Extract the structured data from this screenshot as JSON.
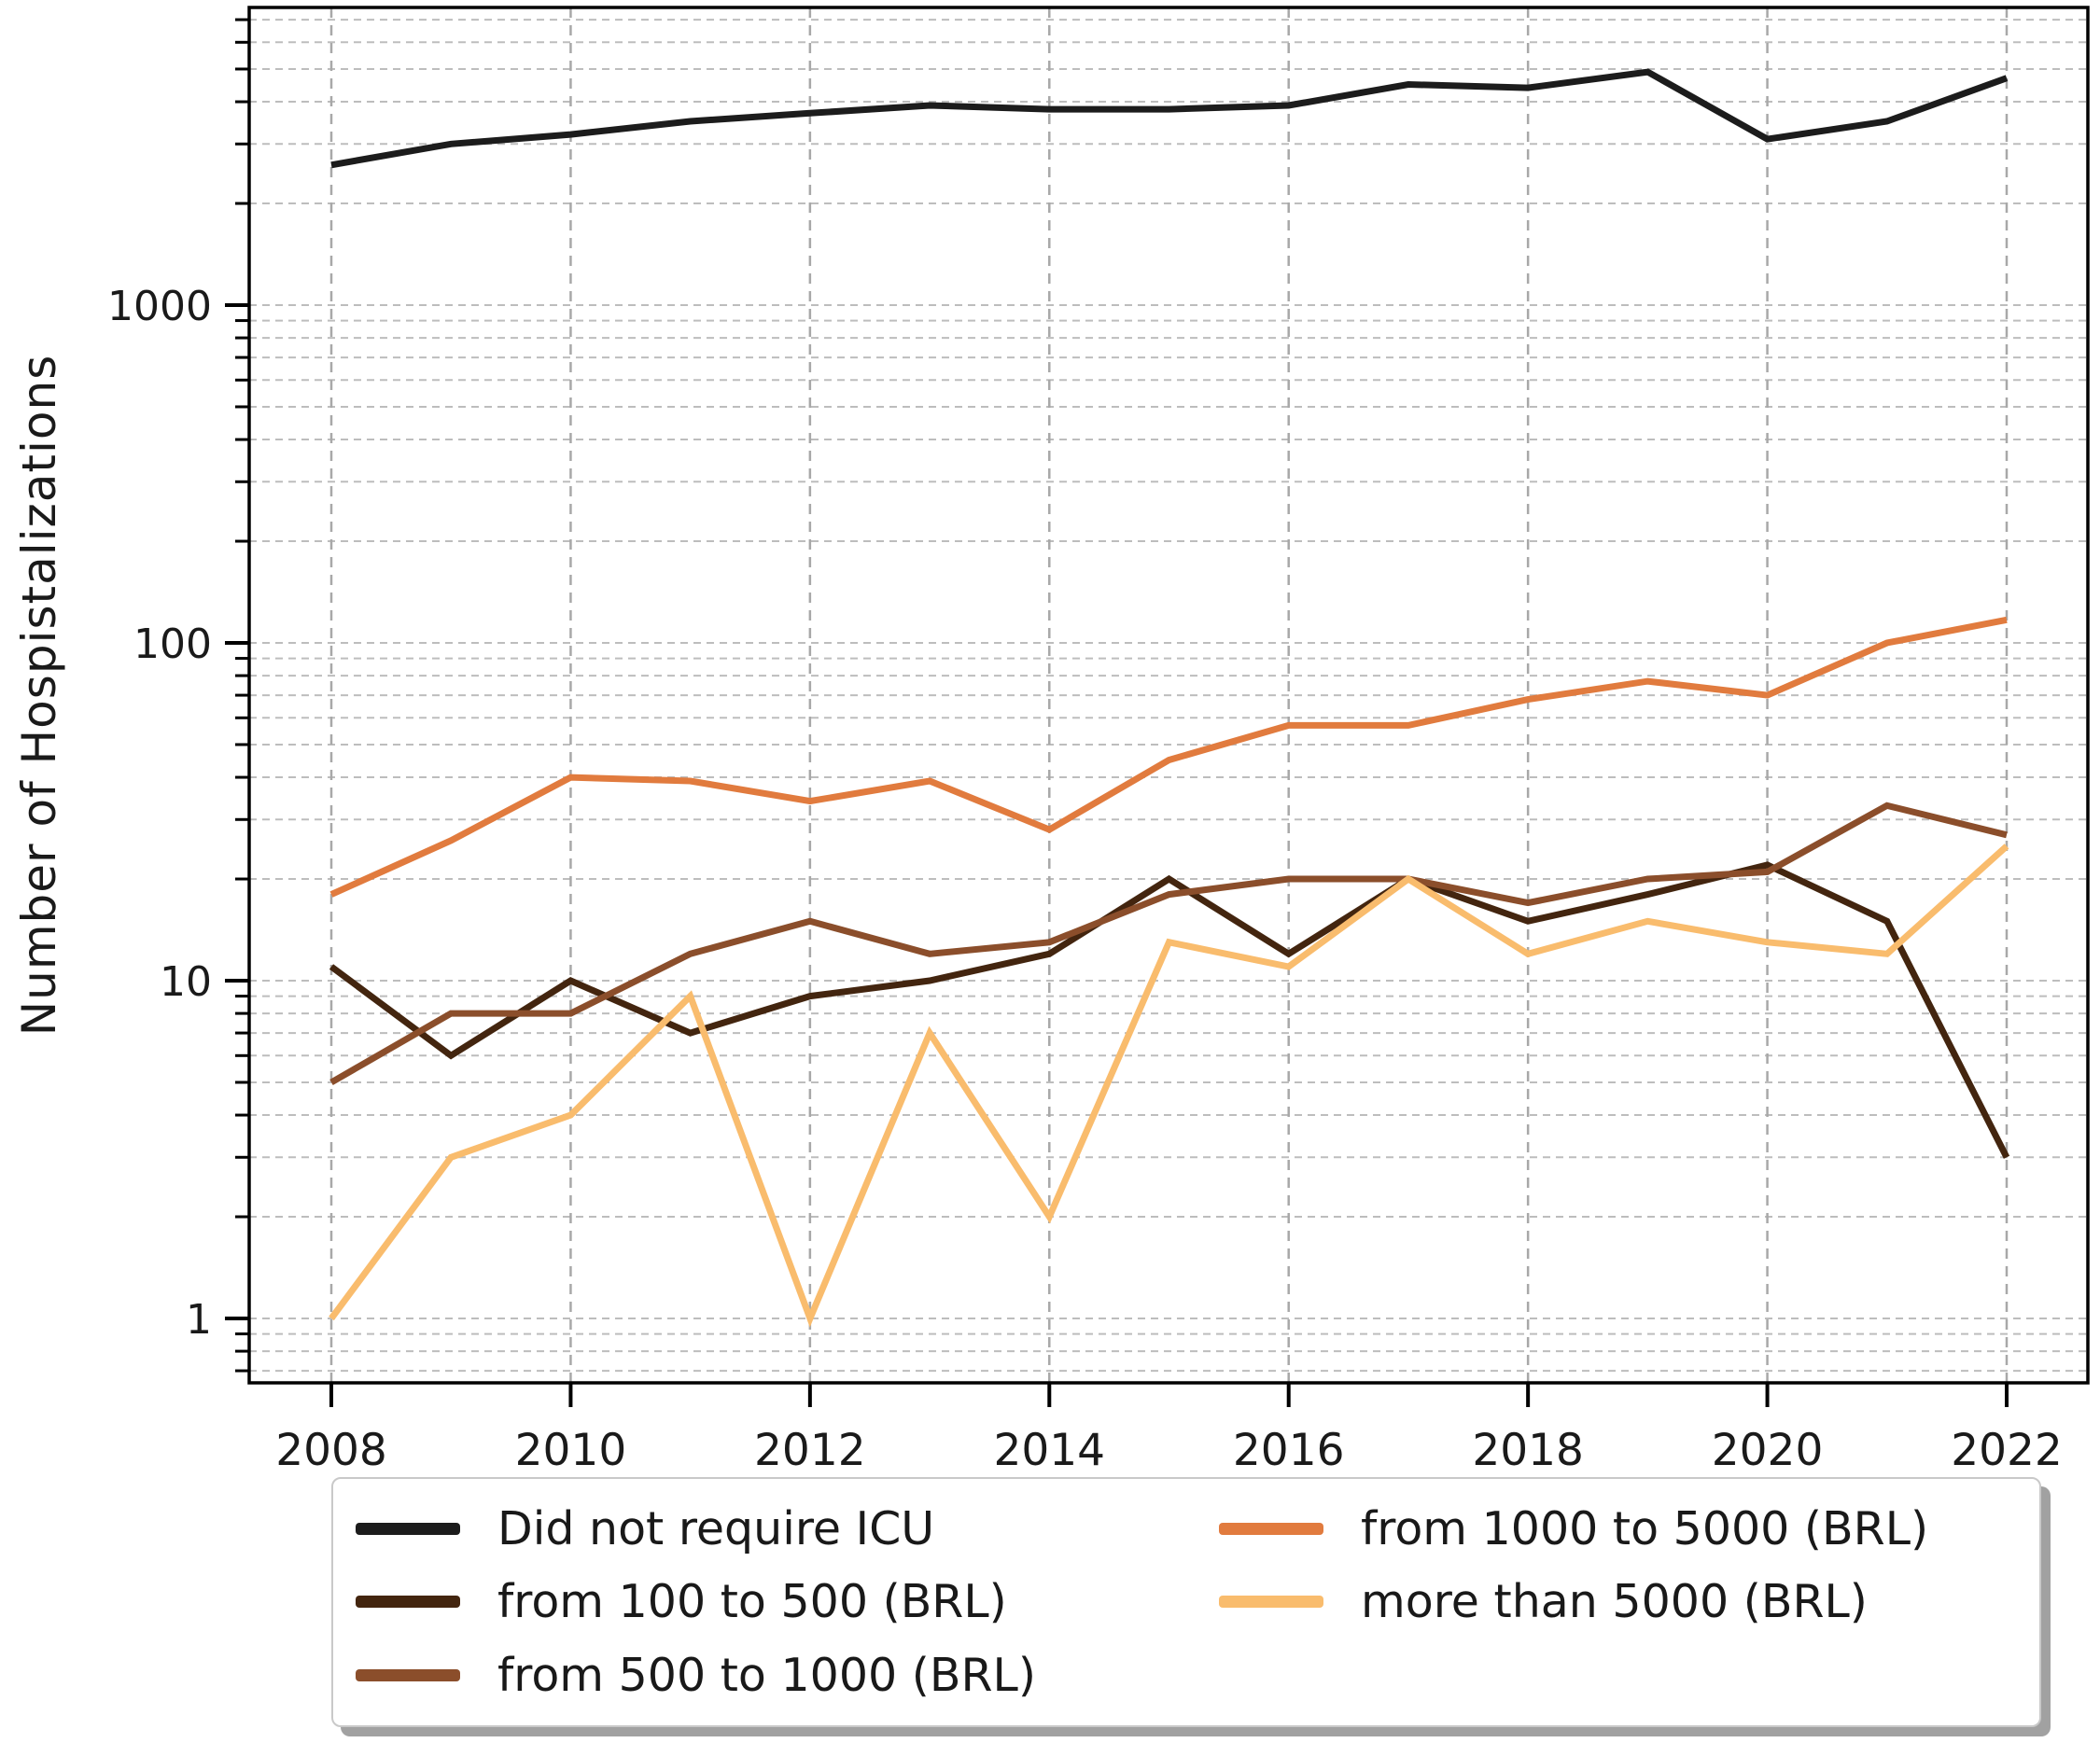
{
  "chart_data": {
    "type": "line",
    "title": "",
    "xlabel": "",
    "ylabel": "Number of Hospistalizations",
    "yscale": "log",
    "grid": true,
    "legend_position": "below-axes, 2 columns, fancy box with shadow",
    "xlim": [
      2007.31,
      2022.69
    ],
    "ylim": [
      0.65,
      7600
    ],
    "x_tick_labels": [
      "2008",
      "2010",
      "2012",
      "2014",
      "2016",
      "2018",
      "2020",
      "2022"
    ],
    "y_tick_labels": [
      "1",
      "10",
      "100",
      "1000"
    ],
    "x": [
      2008,
      2009,
      2010,
      2011,
      2012,
      2013,
      2014,
      2015,
      2016,
      2017,
      2018,
      2019,
      2020,
      2021,
      2022
    ],
    "series": [
      {
        "name": "Did not require ICU",
        "color": "#1c1c1c",
        "values": [
          2600,
          3000,
          3200,
          3500,
          3700,
          3900,
          3800,
          3800,
          3900,
          4500,
          4400,
          4900,
          3100,
          3500,
          4700
        ]
      },
      {
        "name": "from 100 to 500 (BRL)",
        "color": "#43250f",
        "values": [
          11,
          6,
          10,
          7,
          9,
          10,
          12,
          20,
          12,
          20,
          15,
          18,
          22,
          15,
          3
        ]
      },
      {
        "name": "from 500 to 1000 (BRL)",
        "color": "#8b4e2b",
        "values": [
          5,
          8,
          8,
          12,
          15,
          12,
          13,
          18,
          20,
          20,
          17,
          20,
          21,
          33,
          27
        ]
      },
      {
        "name": "from 1000 to 5000 (BRL)",
        "color": "#e17b3e",
        "values": [
          18,
          26,
          40,
          39,
          34,
          39,
          28,
          45,
          57,
          57,
          68,
          77,
          70,
          100,
          117
        ]
      },
      {
        "name": "more than 5000 (BRL)",
        "color": "#f9bc6d",
        "values": [
          1,
          3,
          4,
          9,
          1,
          7,
          2,
          13,
          11,
          20,
          12,
          15,
          13,
          12,
          25
        ]
      }
    ]
  }
}
